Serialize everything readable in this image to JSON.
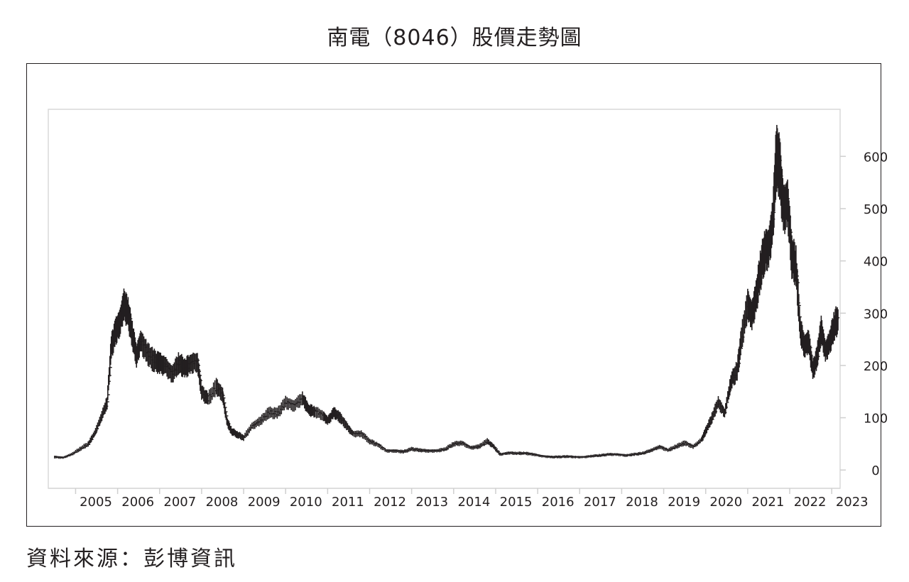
{
  "chart_data": {
    "type": "line",
    "title": "南電（8046）股價走勢圖",
    "xlabel": "",
    "ylabel": "",
    "ylim": [
      -35,
      690
    ],
    "xlim": [
      2004.35,
      2023.2
    ],
    "x_ticks": [
      "2005",
      "2006",
      "2007",
      "2008",
      "2009",
      "2010",
      "2011",
      "2012",
      "2013",
      "2014",
      "2015",
      "2016",
      "2017",
      "2018",
      "2019",
      "2020",
      "2021",
      "2022",
      "2023"
    ],
    "y_ticks": [
      0,
      100,
      200,
      300,
      400,
      500,
      600
    ],
    "grid": false,
    "legend": "none",
    "style": "monthly high-low bars",
    "series": [
      {
        "points": [
          [
            2004.5,
            25
          ],
          [
            2004.7,
            24
          ],
          [
            2004.9,
            30
          ],
          [
            2005.1,
            40
          ],
          [
            2005.3,
            50
          ],
          [
            2005.45,
            70
          ],
          [
            2005.6,
            100
          ],
          [
            2005.75,
            130
          ],
          [
            2005.85,
            235
          ],
          [
            2005.95,
            265
          ],
          [
            2006.05,
            285
          ],
          [
            2006.15,
            320
          ],
          [
            2006.25,
            300
          ],
          [
            2006.35,
            260
          ],
          [
            2006.45,
            220
          ],
          [
            2006.55,
            250
          ],
          [
            2006.7,
            225
          ],
          [
            2006.85,
            210
          ],
          [
            2007.0,
            205
          ],
          [
            2007.15,
            200
          ],
          [
            2007.3,
            185
          ],
          [
            2007.45,
            205
          ],
          [
            2007.6,
            195
          ],
          [
            2007.75,
            205
          ],
          [
            2007.9,
            210
          ],
          [
            2008.0,
            150
          ],
          [
            2008.15,
            135
          ],
          [
            2008.35,
            160
          ],
          [
            2008.5,
            145
          ],
          [
            2008.6,
            95
          ],
          [
            2008.7,
            75
          ],
          [
            2008.85,
            68
          ],
          [
            2009.0,
            62
          ],
          [
            2009.2,
            85
          ],
          [
            2009.4,
            95
          ],
          [
            2009.6,
            110
          ],
          [
            2009.8,
            108
          ],
          [
            2010.0,
            130
          ],
          [
            2010.2,
            125
          ],
          [
            2010.4,
            138
          ],
          [
            2010.55,
            115
          ],
          [
            2010.7,
            112
          ],
          [
            2010.9,
            105
          ],
          [
            2011.0,
            95
          ],
          [
            2011.15,
            110
          ],
          [
            2011.3,
            100
          ],
          [
            2011.45,
            85
          ],
          [
            2011.6,
            70
          ],
          [
            2011.8,
            70
          ],
          [
            2012.0,
            55
          ],
          [
            2012.2,
            48
          ],
          [
            2012.4,
            37
          ],
          [
            2012.6,
            37
          ],
          [
            2012.8,
            35
          ],
          [
            2013.0,
            40
          ],
          [
            2013.2,
            38
          ],
          [
            2013.4,
            37
          ],
          [
            2013.6,
            37
          ],
          [
            2013.8,
            40
          ],
          [
            2014.0,
            50
          ],
          [
            2014.2,
            52
          ],
          [
            2014.4,
            43
          ],
          [
            2014.6,
            45
          ],
          [
            2014.8,
            55
          ],
          [
            2014.95,
            45
          ],
          [
            2015.1,
            30
          ],
          [
            2015.3,
            33
          ],
          [
            2015.5,
            32
          ],
          [
            2015.7,
            32
          ],
          [
            2015.9,
            30
          ],
          [
            2016.1,
            27
          ],
          [
            2016.3,
            25
          ],
          [
            2016.5,
            25
          ],
          [
            2016.7,
            26
          ],
          [
            2016.9,
            25
          ],
          [
            2017.1,
            25
          ],
          [
            2017.3,
            27
          ],
          [
            2017.5,
            28
          ],
          [
            2017.7,
            30
          ],
          [
            2017.9,
            30
          ],
          [
            2018.1,
            28
          ],
          [
            2018.3,
            30
          ],
          [
            2018.5,
            32
          ],
          [
            2018.7,
            38
          ],
          [
            2018.9,
            45
          ],
          [
            2019.1,
            38
          ],
          [
            2019.3,
            45
          ],
          [
            2019.5,
            52
          ],
          [
            2019.7,
            45
          ],
          [
            2019.9,
            58
          ],
          [
            2020.0,
            75
          ],
          [
            2020.15,
            100
          ],
          [
            2020.3,
            130
          ],
          [
            2020.45,
            110
          ],
          [
            2020.6,
            170
          ],
          [
            2020.75,
            190
          ],
          [
            2020.85,
            250
          ],
          [
            2021.0,
            320
          ],
          [
            2021.1,
            300
          ],
          [
            2021.2,
            330
          ],
          [
            2021.3,
            380
          ],
          [
            2021.4,
            420
          ],
          [
            2021.5,
            430
          ],
          [
            2021.6,
            480
          ],
          [
            2021.68,
            600
          ],
          [
            2021.76,
            580
          ],
          [
            2021.85,
            500
          ],
          [
            2021.95,
            520
          ],
          [
            2022.05,
            410
          ],
          [
            2022.15,
            390
          ],
          [
            2022.25,
            270
          ],
          [
            2022.35,
            240
          ],
          [
            2022.45,
            250
          ],
          [
            2022.55,
            190
          ],
          [
            2022.65,
            215
          ],
          [
            2022.75,
            270
          ],
          [
            2022.85,
            230
          ],
          [
            2022.95,
            245
          ],
          [
            2023.05,
            275
          ],
          [
            2023.15,
            290
          ]
        ]
      }
    ]
  },
  "source_note": "資料來源：彭博資訊"
}
